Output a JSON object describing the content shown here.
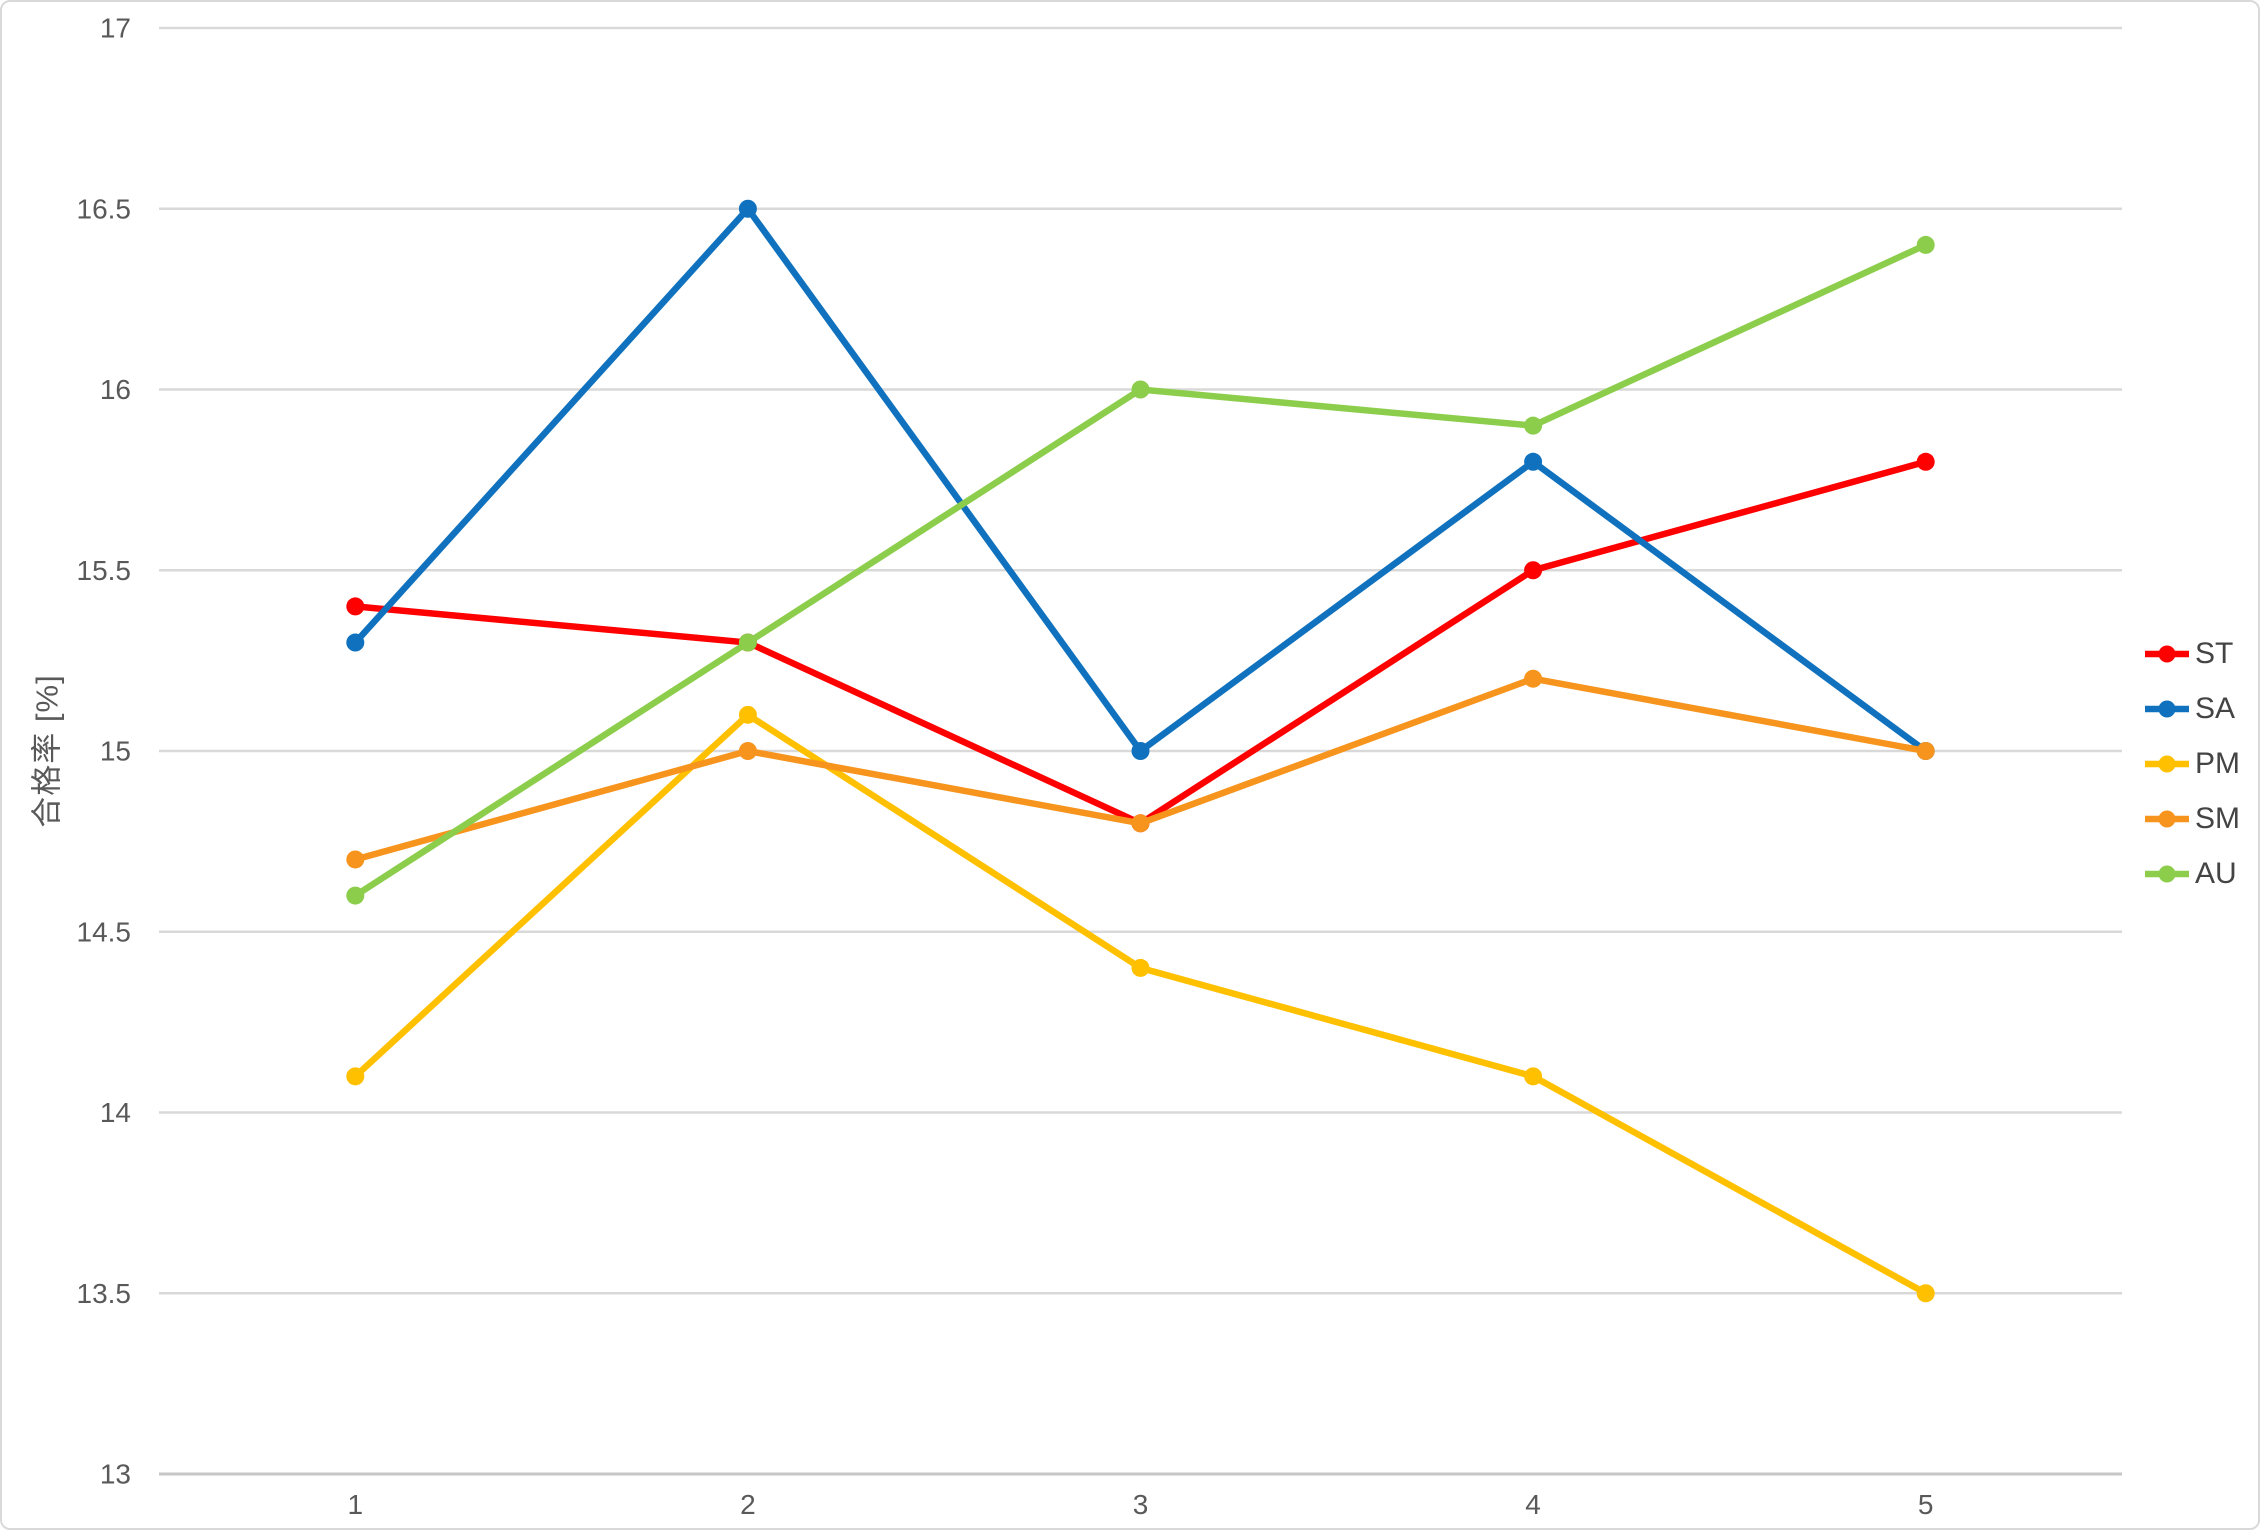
{
  "chart_data": {
    "type": "line",
    "title": "",
    "xlabel": "",
    "ylabel": "合格率 [%]",
    "categories": [
      "1",
      "2",
      "3",
      "4",
      "5"
    ],
    "y_ticks": [
      "13",
      "13.5",
      "14",
      "14.5",
      "15",
      "15.5",
      "16",
      "16.5",
      "17"
    ],
    "ylim": [
      13,
      17
    ],
    "grid": true,
    "legend_position": "right",
    "series": [
      {
        "name": "ST",
        "color": "#FF0000",
        "values": [
          15.4,
          15.3,
          14.8,
          15.5,
          15.8
        ]
      },
      {
        "name": "SA",
        "color": "#1072BE",
        "values": [
          15.3,
          16.5,
          15.0,
          15.8,
          15.0
        ]
      },
      {
        "name": "PM",
        "color": "#FFC000",
        "values": [
          14.1,
          15.1,
          14.4,
          14.1,
          13.5
        ]
      },
      {
        "name": "SM",
        "color": "#F7941D",
        "values": [
          14.7,
          15.0,
          14.8,
          15.2,
          15.0
        ]
      },
      {
        "name": "AU",
        "color": "#8CCE4C",
        "values": [
          14.6,
          15.3,
          16.0,
          15.9,
          16.4
        ]
      }
    ]
  },
  "colors": {
    "background": "#FFFFFF",
    "canvas_border": "#D9D9D9",
    "gridline": "#D9D9D9",
    "axis_baseline": "#C6C6C6",
    "tick_text": "#595959",
    "legend_text": "#444444"
  }
}
